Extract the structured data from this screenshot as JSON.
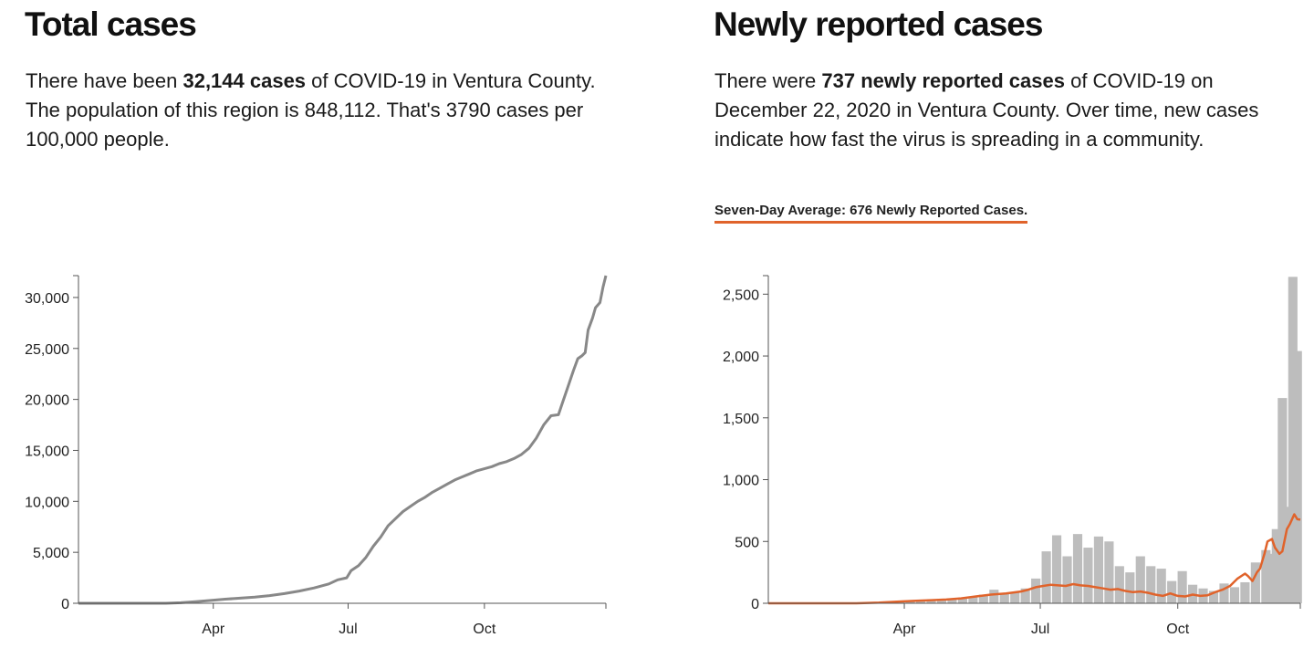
{
  "total": {
    "heading": "Total cases",
    "desc_before": "There have been ",
    "desc_bold": "32,144 cases",
    "desc_after": " of COVID-19 in Ventura County. The population of this region is 848,112. That's 3790 cases per 100,000 people."
  },
  "new": {
    "heading": "Newly reported cases",
    "desc_before": "There were ",
    "desc_bold": "737 newly reported cases",
    "desc_after": " of COVID-19 on December 22, 2020 in Ventura County. Over time, new cases indicate how fast the virus is spreading in a community.",
    "average_label": "Seven-Day Average: 676 Newly Reported Cases."
  },
  "colors": {
    "total_line": "#888888",
    "bars": "#bdbdbd",
    "average_line": "#e0632b",
    "axis": "#555555"
  },
  "chart_data": [
    {
      "type": "line",
      "x_unit": "day of year 2020",
      "ylim": [
        0,
        32144
      ],
      "xlim": [
        1,
        357
      ],
      "y_ticks": [
        0,
        5000,
        10000,
        15000,
        20000,
        25000,
        30000
      ],
      "y_tick_labels": [
        "0",
        "5,000",
        "10,000",
        "15,000",
        "20,000",
        "25,000",
        "30,000"
      ],
      "x_ticks": [
        92,
        183,
        275
      ],
      "x_tick_labels": [
        "Apr",
        "Jul",
        "Oct"
      ],
      "grid": false,
      "series": [
        {
          "x": [
            1,
            60,
            70,
            80,
            92,
            100,
            110,
            120,
            130,
            140,
            150,
            160,
            170,
            176,
            182,
            185,
            190,
            195,
            200,
            205,
            210,
            215,
            220,
            225,
            230,
            235,
            240,
            245,
            250,
            255,
            260,
            265,
            270,
            275,
            280,
            285,
            290,
            295,
            300,
            305,
            310,
            315,
            320,
            325,
            328,
            332,
            335,
            338,
            341,
            343,
            345,
            348,
            350,
            353,
            355,
            357
          ],
          "y": [
            0,
            0,
            50,
            150,
            300,
            400,
            500,
            600,
            750,
            950,
            1200,
            1500,
            1900,
            2300,
            2500,
            3200,
            3700,
            4500,
            5600,
            6500,
            7600,
            8300,
            9000,
            9500,
            10000,
            10400,
            10900,
            11300,
            11700,
            12100,
            12400,
            12700,
            13000,
            13200,
            13400,
            13700,
            13900,
            14200,
            14600,
            15200,
            16200,
            17500,
            18400,
            18500,
            19800,
            21500,
            22800,
            24000,
            24300,
            24600,
            26800,
            28000,
            29000,
            29500,
            31000,
            32144
          ]
        }
      ]
    },
    {
      "type": "bar",
      "x_unit": "day of year 2020",
      "ylim": [
        0,
        2650
      ],
      "xlim": [
        1,
        357
      ],
      "y_ticks": [
        0,
        500,
        1000,
        1500,
        2000,
        2500
      ],
      "y_tick_labels": [
        "0",
        "500",
        "1,000",
        "1,500",
        "2,000",
        "2,500"
      ],
      "x_ticks": [
        92,
        183,
        275
      ],
      "x_tick_labels": [
        "Apr",
        "Jul",
        "Oct"
      ],
      "grid": false,
      "bars": {
        "x": [
          75,
          82,
          89,
          96,
          103,
          110,
          117,
          124,
          131,
          138,
          145,
          152,
          159,
          166,
          173,
          180,
          187,
          194,
          201,
          208,
          215,
          222,
          229,
          236,
          243,
          250,
          257,
          264,
          271,
          278,
          285,
          292,
          299,
          306,
          313,
          320,
          327,
          334,
          338,
          341,
          345,
          348,
          352,
          355
        ],
        "y": [
          10,
          15,
          20,
          25,
          25,
          30,
          35,
          40,
          45,
          55,
          70,
          110,
          80,
          90,
          120,
          200,
          420,
          550,
          380,
          560,
          450,
          540,
          500,
          300,
          250,
          380,
          300,
          280,
          180,
          260,
          150,
          120,
          100,
          160,
          130,
          170,
          330,
          430,
          400,
          600,
          1660,
          780,
          2640,
          2040
        ]
      },
      "series": [
        {
          "name": "Seven-day average",
          "x": [
            1,
            60,
            75,
            90,
            100,
            110,
            120,
            130,
            140,
            150,
            160,
            170,
            175,
            180,
            185,
            190,
            195,
            200,
            205,
            210,
            215,
            220,
            225,
            230,
            235,
            240,
            245,
            250,
            255,
            260,
            265,
            270,
            275,
            280,
            285,
            290,
            295,
            300,
            305,
            310,
            315,
            320,
            322,
            325,
            328,
            330,
            333,
            335,
            338,
            340,
            343,
            345,
            348,
            350,
            353,
            355,
            357
          ],
          "y": [
            0,
            0,
            5,
            15,
            20,
            25,
            30,
            40,
            55,
            70,
            80,
            95,
            110,
            130,
            140,
            150,
            145,
            140,
            155,
            145,
            140,
            130,
            120,
            110,
            115,
            100,
            90,
            95,
            85,
            70,
            60,
            80,
            60,
            55,
            70,
            60,
            65,
            90,
            110,
            140,
            200,
            240,
            220,
            180,
            250,
            280,
            400,
            500,
            520,
            450,
            400,
            420,
            600,
            640,
            720,
            680,
            676
          ]
        }
      ]
    }
  ]
}
